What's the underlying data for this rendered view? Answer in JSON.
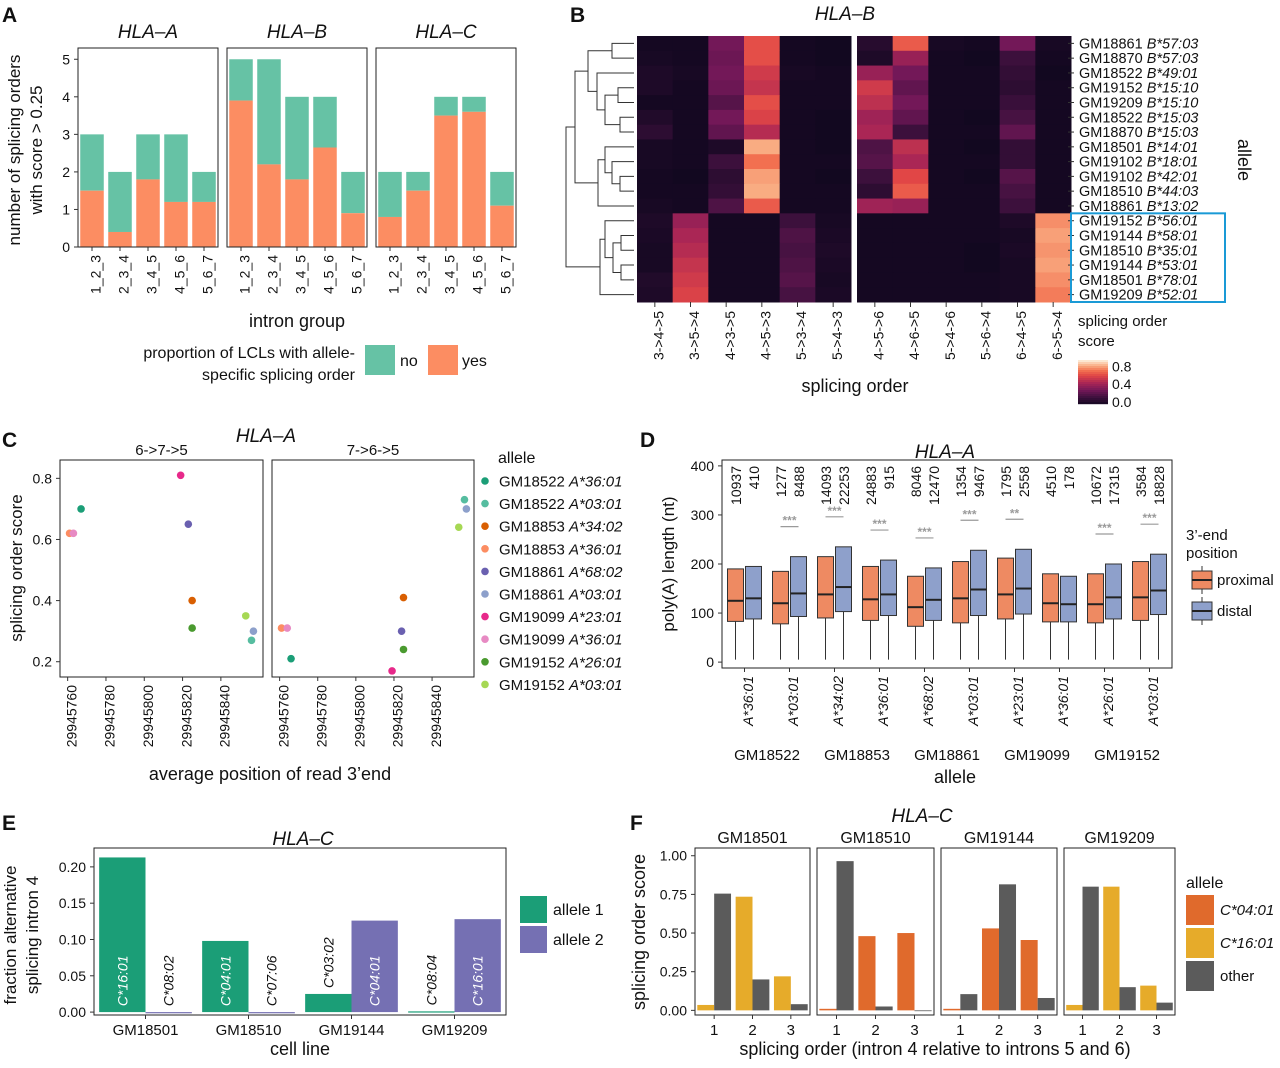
{
  "panel_labels": [
    "A",
    "B",
    "C",
    "D",
    "E",
    "F"
  ],
  "colors": {
    "no": "#66c2a5",
    "yes": "#fc8d62",
    "proximal": "#ee8a62",
    "distal": "#8ea0cb",
    "allele1": "#1b9e77",
    "allele2": "#7570b3",
    "c0401": "#e06a2c",
    "c1601": "#e6ab2a",
    "other": "#5b5b5b",
    "highlight": "#1a9ad6",
    "sig": "#9a9a9a"
  },
  "chart_data": [
    {
      "id": "A",
      "type": "bar",
      "stacked": true,
      "facets": [
        "HLA–A",
        "HLA–B",
        "HLA–C"
      ],
      "categories": [
        "1_2_3",
        "2_3_4",
        "3_4_5",
        "4_5_6",
        "5_6_7"
      ],
      "series": [
        {
          "name": "yes",
          "values": [
            [
              1.5,
              0.4,
              1.8,
              1.2,
              1.2
            ],
            [
              3.9,
              2.2,
              1.8,
              2.65,
              0.9
            ],
            [
              0.8,
              1.5,
              3.5,
              3.6,
              1.1
            ]
          ]
        },
        {
          "name": "total",
          "values": [
            [
              3,
              2,
              3,
              3,
              2
            ],
            [
              5,
              5,
              4,
              4,
              2
            ],
            [
              2,
              2,
              4,
              4,
              2
            ]
          ]
        }
      ],
      "ylabel": "number of splicing orders\nwith score > 0.25",
      "xlabel": "intron group",
      "yticks": [
        0,
        1,
        2,
        3,
        4,
        5
      ],
      "ylim": [
        0,
        5.3
      ],
      "legend_title": "proportion of LCLs with allele-\nspecific splicing order",
      "legend": [
        "no",
        "yes"
      ]
    },
    {
      "id": "B",
      "type": "heatmap",
      "title": "HLA–B",
      "rows": [
        "GM18861",
        "GM18870",
        "GM18522",
        "GM19152",
        "GM19209",
        "GM18522",
        "GM18870",
        "GM18501",
        "GM19102",
        "GM19102",
        "GM18510",
        "GM18861",
        "GM19152",
        "GM19144",
        "GM18510",
        "GM19144",
        "GM18501",
        "GM19209"
      ],
      "row_alleles": [
        "B*57:03",
        "B*57:03",
        "B*49:01",
        "B*15:10",
        "B*15:10",
        "B*15:03",
        "B*15:03",
        "B*14:01",
        "B*18:01",
        "B*42:01",
        "B*44:03",
        "B*13:02",
        "B*56:01",
        "B*58:01",
        "B*35:01",
        "B*53:01",
        "B*78:01",
        "B*52:01"
      ],
      "columns": [
        "3->4->5",
        "3->5->4",
        "4->3->5",
        "4->5->3",
        "5->3->4",
        "5->4->3",
        "4->5->6",
        "4->6->5",
        "5->4->6",
        "5->6->4",
        "6->4->5",
        "6->5->4"
      ],
      "values": [
        [
          0.02,
          0.02,
          0.3,
          0.62,
          0.02,
          0.01,
          0.08,
          0.65,
          0.03,
          0.02,
          0.3,
          0.03
        ],
        [
          0.03,
          0.02,
          0.28,
          0.62,
          0.02,
          0.01,
          0.05,
          0.4,
          0.02,
          0.01,
          0.15,
          0.02
        ],
        [
          0.05,
          0.03,
          0.3,
          0.55,
          0.03,
          0.02,
          0.4,
          0.3,
          0.02,
          0.02,
          0.12,
          0.01
        ],
        [
          0.05,
          0.02,
          0.28,
          0.52,
          0.02,
          0.02,
          0.55,
          0.25,
          0.02,
          0.02,
          0.1,
          0.02
        ],
        [
          0.02,
          0.02,
          0.22,
          0.62,
          0.02,
          0.02,
          0.5,
          0.3,
          0.02,
          0.02,
          0.14,
          0.02
        ],
        [
          0.06,
          0.02,
          0.3,
          0.58,
          0.02,
          0.01,
          0.42,
          0.25,
          0.02,
          0.01,
          0.18,
          0.02
        ],
        [
          0.1,
          0.02,
          0.25,
          0.48,
          0.02,
          0.01,
          0.45,
          0.15,
          0.02,
          0.02,
          0.25,
          0.02
        ],
        [
          0.03,
          0.02,
          0.05,
          0.8,
          0.02,
          0.01,
          0.2,
          0.5,
          0.02,
          0.01,
          0.12,
          0.02
        ],
        [
          0.03,
          0.02,
          0.15,
          0.7,
          0.02,
          0.02,
          0.22,
          0.45,
          0.02,
          0.02,
          0.12,
          0.02
        ],
        [
          0.02,
          0.01,
          0.1,
          0.78,
          0.02,
          0.01,
          0.15,
          0.6,
          0.02,
          0.01,
          0.22,
          0.02
        ],
        [
          0.02,
          0.02,
          0.12,
          0.8,
          0.02,
          0.02,
          0.1,
          0.65,
          0.02,
          0.02,
          0.18,
          0.02
        ],
        [
          0.03,
          0.02,
          0.2,
          0.65,
          0.02,
          0.02,
          0.42,
          0.4,
          0.02,
          0.02,
          0.15,
          0.02
        ],
        [
          0.05,
          0.4,
          0.02,
          0.02,
          0.15,
          0.03,
          0.02,
          0.02,
          0.02,
          0.02,
          0.05,
          0.75
        ],
        [
          0.04,
          0.45,
          0.02,
          0.02,
          0.2,
          0.04,
          0.02,
          0.02,
          0.02,
          0.02,
          0.03,
          0.78
        ],
        [
          0.03,
          0.48,
          0.02,
          0.02,
          0.18,
          0.05,
          0.02,
          0.02,
          0.02,
          0.01,
          0.04,
          0.76
        ],
        [
          0.03,
          0.52,
          0.02,
          0.02,
          0.2,
          0.04,
          0.02,
          0.02,
          0.02,
          0.01,
          0.03,
          0.78
        ],
        [
          0.06,
          0.55,
          0.02,
          0.02,
          0.22,
          0.03,
          0.02,
          0.02,
          0.02,
          0.02,
          0.03,
          0.75
        ],
        [
          0.05,
          0.58,
          0.02,
          0.02,
          0.18,
          0.04,
          0.02,
          0.02,
          0.02,
          0.02,
          0.03,
          0.72
        ]
      ],
      "xlabel": "splicing order",
      "ylabel": "allele",
      "legend_title": "splicing order\nscore",
      "legend_ticks": [
        0.8,
        0.4,
        0.0
      ],
      "highlight_rows": [
        12,
        17
      ]
    },
    {
      "id": "C",
      "type": "scatter",
      "title": "HLA–A",
      "facets": [
        "6->7->5",
        "7->6->5"
      ],
      "xlabel": "average position of read 3’end",
      "ylabel": "splicing order score",
      "xticks": [
        "29945760",
        "29945780",
        "29945800",
        "29945820",
        "29945840"
      ],
      "xlim": [
        29945756,
        29945862
      ],
      "yticks": [
        0.2,
        0.4,
        0.6,
        0.8
      ],
      "ylim": [
        0.15,
        0.86
      ],
      "legend_title": "allele",
      "series": [
        {
          "name": "GM18522",
          "allele": "A*36:01",
          "color": "#1b9e77",
          "points": [
            [
              29945767,
              0.7
            ],
            [
              29945766,
              0.21
            ]
          ]
        },
        {
          "name": "GM18522",
          "allele": "A*03:01",
          "color": "#56bda0",
          "points": [
            [
              29945856,
              0.27
            ],
            [
              29945857,
              0.73
            ]
          ]
        },
        {
          "name": "GM18853",
          "allele": "A*34:02",
          "color": "#d95f02",
          "points": [
            [
              29945825,
              0.4
            ],
            [
              29945825,
              0.41
            ]
          ]
        },
        {
          "name": "GM18853",
          "allele": "A*36:01",
          "color": "#fc8d62",
          "points": [
            [
              29945761,
              0.62
            ],
            [
              29945761,
              0.31
            ]
          ]
        },
        {
          "name": "GM18861",
          "allele": "A*68:02",
          "color": "#6a60b0",
          "points": [
            [
              29945823,
              0.65
            ],
            [
              29945824,
              0.3
            ]
          ]
        },
        {
          "name": "GM18861",
          "allele": "A*03:01",
          "color": "#8da0cb",
          "points": [
            [
              29945857,
              0.3
            ],
            [
              29945858,
              0.7
            ]
          ]
        },
        {
          "name": "GM19099",
          "allele": "A*23:01",
          "color": "#e7298a",
          "points": [
            [
              29945819,
              0.81
            ],
            [
              29945819,
              0.17
            ]
          ]
        },
        {
          "name": "GM19099",
          "allele": "A*36:01",
          "color": "#e78ac3",
          "points": [
            [
              29945763,
              0.62
            ],
            [
              29945764,
              0.31
            ]
          ]
        },
        {
          "name": "GM19152",
          "allele": "A*26:01",
          "color": "#4a9a2f",
          "points": [
            [
              29945825,
              0.31
            ],
            [
              29945825,
              0.24
            ]
          ]
        },
        {
          "name": "GM19152",
          "allele": "A*03:01",
          "color": "#a6d854",
          "points": [
            [
              29945853,
              0.35
            ],
            [
              29945854,
              0.64
            ]
          ]
        }
      ]
    },
    {
      "id": "D",
      "type": "boxplot",
      "title": "HLA–A",
      "ylabel": "poly(A) length (nt)",
      "xlabel": "allele",
      "yticks": [
        0,
        100,
        200,
        300,
        400
      ],
      "ylim": [
        -12,
        412
      ],
      "categories": [
        "A*36:01",
        "A*03:01",
        "A*34:02",
        "A*36:01",
        "A*68:02",
        "A*03:01",
        "A*23:01",
        "A*36:01",
        "A*26:01",
        "A*03:01"
      ],
      "groups": [
        "GM18522",
        "GM18853",
        "GM18861",
        "GM19099",
        "GM19152"
      ],
      "counts": [
        [
          "10937",
          "410"
        ],
        [
          "1277",
          "8488"
        ],
        [
          "14093",
          "22253"
        ],
        [
          "24883",
          "915"
        ],
        [
          "8046",
          "12470"
        ],
        [
          "1354",
          "9467"
        ],
        [
          "1795",
          "2558"
        ],
        [
          "4510",
          "178"
        ],
        [
          "10672",
          "17315"
        ],
        [
          "3584",
          "18828"
        ]
      ],
      "significance": [
        "",
        "***",
        "***",
        "***",
        "***",
        "***",
        "**",
        "",
        "***",
        "***"
      ],
      "legend_title": "3’-end\nposition",
      "legend": [
        "proximal",
        "distal"
      ],
      "boxes": [
        [
          [
            50,
            83,
            125,
            190,
            5
          ],
          [
            52,
            88,
            130,
            195,
            5
          ]
        ],
        [
          [
            45,
            78,
            120,
            185,
            5
          ],
          [
            55,
            93,
            140,
            215,
            5
          ]
        ],
        [
          [
            55,
            90,
            138,
            215,
            5
          ],
          [
            60,
            103,
            153,
            235,
            5
          ]
        ],
        [
          [
            52,
            85,
            128,
            195,
            5
          ],
          [
            58,
            95,
            138,
            208,
            5
          ]
        ],
        [
          [
            40,
            73,
            112,
            175,
            5
          ],
          [
            50,
            85,
            127,
            192,
            5
          ]
        ],
        [
          [
            45,
            80,
            130,
            205,
            5
          ],
          [
            55,
            95,
            148,
            228,
            5
          ]
        ],
        [
          [
            48,
            88,
            138,
            212,
            5
          ],
          [
            58,
            98,
            150,
            230,
            5
          ]
        ],
        [
          [
            48,
            82,
            120,
            180,
            5
          ],
          [
            45,
            82,
            118,
            175,
            5
          ]
        ],
        [
          [
            48,
            80,
            118,
            180,
            5
          ],
          [
            52,
            88,
            132,
            200,
            5
          ]
        ],
        [
          [
            50,
            85,
            132,
            205,
            5
          ],
          [
            57,
            97,
            146,
            220,
            5
          ]
        ]
      ]
    },
    {
      "id": "E",
      "type": "bar",
      "title": "HLA–C",
      "ylabel": "fraction alternative\nsplicing intron 4",
      "xlabel": "cell line",
      "categories": [
        "GM18501",
        "GM18510",
        "GM19144",
        "GM19209"
      ],
      "yticks": [
        0.0,
        0.05,
        0.1,
        0.15,
        0.2
      ],
      "ytick_labels": [
        "0.00",
        "0.05",
        "0.10",
        "0.15",
        "0.20"
      ],
      "ylim": [
        -0.004,
        0.226
      ],
      "series": [
        {
          "name": "allele 1",
          "values": [
            0.213,
            0.098,
            0.025,
            0.001
          ],
          "labels": [
            "C*16:01",
            "C*04:01",
            "C*03:02",
            "C*08:04"
          ]
        },
        {
          "name": "allele 2",
          "values": [
            0.0,
            0.0,
            0.126,
            0.128
          ],
          "labels": [
            "C*08:02",
            "C*07:06",
            "C*04:01",
            "C*16:01"
          ]
        }
      ],
      "legend": [
        "allele 1",
        "allele 2"
      ]
    },
    {
      "id": "F",
      "type": "bar",
      "title": "HLA–C",
      "facets": [
        "GM18501",
        "GM18510",
        "GM19144",
        "GM19209"
      ],
      "categories": [
        "1",
        "2",
        "3"
      ],
      "ylabel": "splicing order score",
      "xlabel": "splicing order (intron 4 relative to introns 5 and 6)",
      "yticks": [
        0,
        0.25,
        0.5,
        0.75,
        1.0
      ],
      "ytick_labels": [
        "0.00",
        "0.25",
        "0.50",
        "0.75",
        "1.00"
      ],
      "ylim": [
        -0.03,
        1.05
      ],
      "legend_title": "allele",
      "legend": [
        "C*04:01",
        "C*16:01",
        "other"
      ],
      "bars": [
        [
          [
            [
              "C*16:01",
              0.035
            ],
            [
              "other",
              0.755
            ]
          ],
          [
            [
              "C*16:01",
              0.735
            ],
            [
              "other",
              0.2
            ]
          ],
          [
            [
              "C*16:01",
              0.22
            ],
            [
              "other",
              0.04
            ]
          ]
        ],
        [
          [
            [
              "C*04:01",
              0.01
            ],
            [
              "other",
              0.965
            ]
          ],
          [
            [
              "C*04:01",
              0.48
            ],
            [
              "other",
              0.025
            ]
          ],
          [
            [
              "C*04:01",
              0.5
            ],
            [
              "other",
              0.0
            ]
          ]
        ],
        [
          [
            [
              "C*04:01",
              0.01
            ],
            [
              "other",
              0.105
            ]
          ],
          [
            [
              "C*04:01",
              0.53
            ],
            [
              "other",
              0.815
            ]
          ],
          [
            [
              "C*04:01",
              0.455
            ],
            [
              "other",
              0.08
            ]
          ]
        ],
        [
          [
            [
              "C*16:01",
              0.035
            ],
            [
              "other",
              0.8
            ]
          ],
          [
            [
              "C*16:01",
              0.8
            ],
            [
              "other",
              0.15
            ]
          ],
          [
            [
              "C*16:01",
              0.16
            ],
            [
              "other",
              0.05
            ]
          ]
        ]
      ]
    }
  ]
}
